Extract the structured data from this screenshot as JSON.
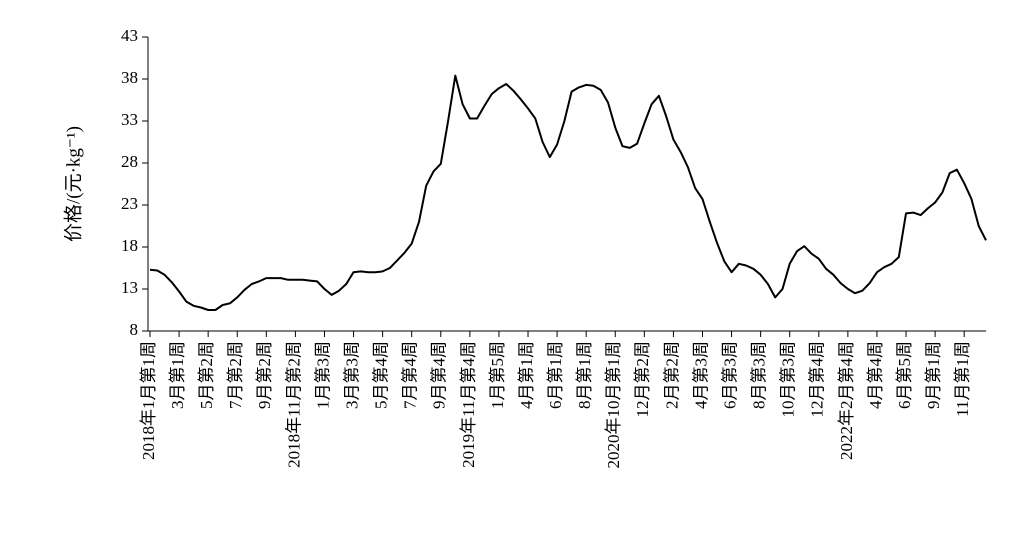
{
  "chart_data": {
    "type": "line",
    "y_label": "价格/(元·kg⁻¹)",
    "categories": [
      "2018年1月第1周",
      null,
      null,
      null,
      "3月第1周",
      null,
      null,
      null,
      "5月第2周",
      null,
      null,
      null,
      "7月第2周",
      null,
      null,
      null,
      "9月第2周",
      null,
      null,
      null,
      "2018年11月第2周",
      null,
      null,
      null,
      "1月第3周",
      null,
      null,
      null,
      "3月第3周",
      null,
      null,
      null,
      "5月第4周",
      null,
      null,
      null,
      "7月第4周",
      null,
      null,
      null,
      "9月第4周",
      null,
      null,
      null,
      "2019年11月第4周",
      null,
      null,
      null,
      "1月第5周",
      null,
      null,
      null,
      "4月第1周",
      null,
      null,
      null,
      "6月第1周",
      null,
      null,
      null,
      "8月第1周",
      null,
      null,
      null,
      "2020年10月第1周",
      null,
      null,
      null,
      "12月第2周",
      null,
      null,
      null,
      "2月第2周",
      null,
      null,
      null,
      "4月第3周",
      null,
      null,
      null,
      "6月第3周",
      null,
      null,
      null,
      "8月第3周",
      null,
      null,
      null,
      "10月第3周",
      null,
      null,
      null,
      "12月第4周",
      null,
      null,
      null,
      "2022年2月第4周",
      null,
      null,
      null,
      "4月第4周",
      null,
      null,
      null,
      "6月第5周",
      null,
      null,
      null,
      "9月第1周",
      null,
      null,
      null,
      "11月第1周",
      null,
      null,
      null
    ],
    "series": [
      {
        "name": "价格",
        "color": "#000000",
        "values": [
          15.3,
          15.2,
          14.7,
          13.8,
          12.7,
          11.5,
          11.0,
          10.8,
          10.5,
          10.5,
          11.1,
          11.3,
          12.0,
          12.9,
          13.6,
          13.9,
          14.3,
          14.3,
          14.3,
          14.1,
          14.1,
          14.1,
          14.0,
          13.9,
          13.0,
          12.3,
          12.8,
          13.6,
          15.0,
          15.1,
          15.0,
          15.0,
          15.1,
          15.5,
          16.4,
          17.3,
          18.4,
          21.0,
          25.3,
          27.0,
          27.9,
          33.0,
          38.4,
          35.0,
          33.3,
          33.3,
          34.8,
          36.2,
          36.9,
          37.4,
          36.6,
          35.6,
          34.5,
          33.3,
          30.5,
          28.7,
          30.2,
          33.0,
          36.5,
          37.0,
          37.3,
          37.2,
          36.7,
          35.2,
          32.2,
          30.0,
          29.8,
          30.3,
          32.7,
          35.0,
          36.0,
          33.6,
          30.8,
          29.3,
          27.5,
          25.0,
          23.7,
          21.0,
          18.5,
          16.3,
          15.0,
          16.0,
          15.8,
          15.4,
          14.7,
          13.6,
          12.0,
          13.0,
          16.0,
          17.5,
          18.1,
          17.2,
          16.6,
          15.4,
          14.7,
          13.7,
          13.0,
          12.5,
          12.8,
          13.7,
          15.0,
          15.6,
          16.0,
          16.8,
          22.0,
          22.1,
          21.8,
          22.6,
          23.3,
          24.5,
          26.8,
          27.2,
          25.6,
          23.7,
          20.5,
          18.8
        ]
      }
    ],
    "ylim": [
      8,
      43
    ],
    "yticks": [
      8,
      13,
      18,
      23,
      28,
      33,
      38,
      43
    ],
    "grid": false
  }
}
